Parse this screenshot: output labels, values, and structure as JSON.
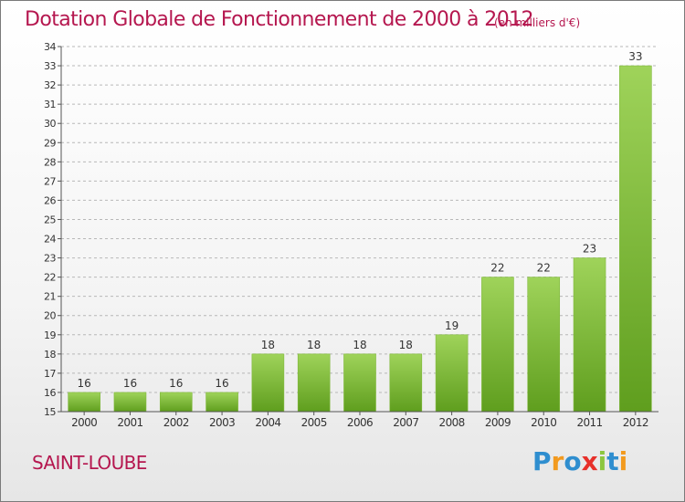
{
  "title": "Dotation Globale de Fonctionnement de 2000 à 2012",
  "subtitle": "(en milliers d'€)",
  "commune": "SAINT-LOUBE",
  "logo": {
    "text": "Proxiti",
    "letters": [
      {
        "ch": "P",
        "color": "#2f8ecf"
      },
      {
        "ch": "r",
        "color": "#f29a1f"
      },
      {
        "ch": "o",
        "color": "#2f8ecf"
      },
      {
        "ch": "x",
        "color": "#e7302a"
      },
      {
        "ch": "i",
        "color": "#8cc63f"
      },
      {
        "ch": "t",
        "color": "#2f8ecf"
      },
      {
        "ch": "i",
        "color": "#f29a1f"
      }
    ]
  },
  "colors": {
    "title": "#b5174f",
    "bar_top": "#9fd35a",
    "bar_bottom": "#5f9e1e",
    "grid": "#b8b8b8",
    "axis": "#555555",
    "label": "#333333"
  },
  "chart_data": {
    "type": "bar",
    "title": "Dotation Globale de Fonctionnement de 2000 à 2012",
    "subtitle": "(en milliers d'€)",
    "xlabel": "",
    "ylabel": "",
    "categories": [
      "2000",
      "2001",
      "2002",
      "2003",
      "2004",
      "2005",
      "2006",
      "2007",
      "2008",
      "2009",
      "2010",
      "2011",
      "2012"
    ],
    "values": [
      16,
      16,
      16,
      16,
      18,
      18,
      18,
      18,
      19,
      22,
      22,
      23,
      33
    ],
    "data_labels": [
      "16",
      "16",
      "16",
      "16",
      "18",
      "18",
      "18",
      "18",
      "19",
      "22",
      "22",
      "23",
      "33"
    ],
    "ylim": [
      15,
      34
    ],
    "yticks": [
      15,
      16,
      17,
      18,
      19,
      20,
      21,
      22,
      23,
      24,
      25,
      26,
      27,
      28,
      29,
      30,
      31,
      32,
      33,
      34
    ],
    "grid": true,
    "grid_style": "dashed-horizontal"
  }
}
